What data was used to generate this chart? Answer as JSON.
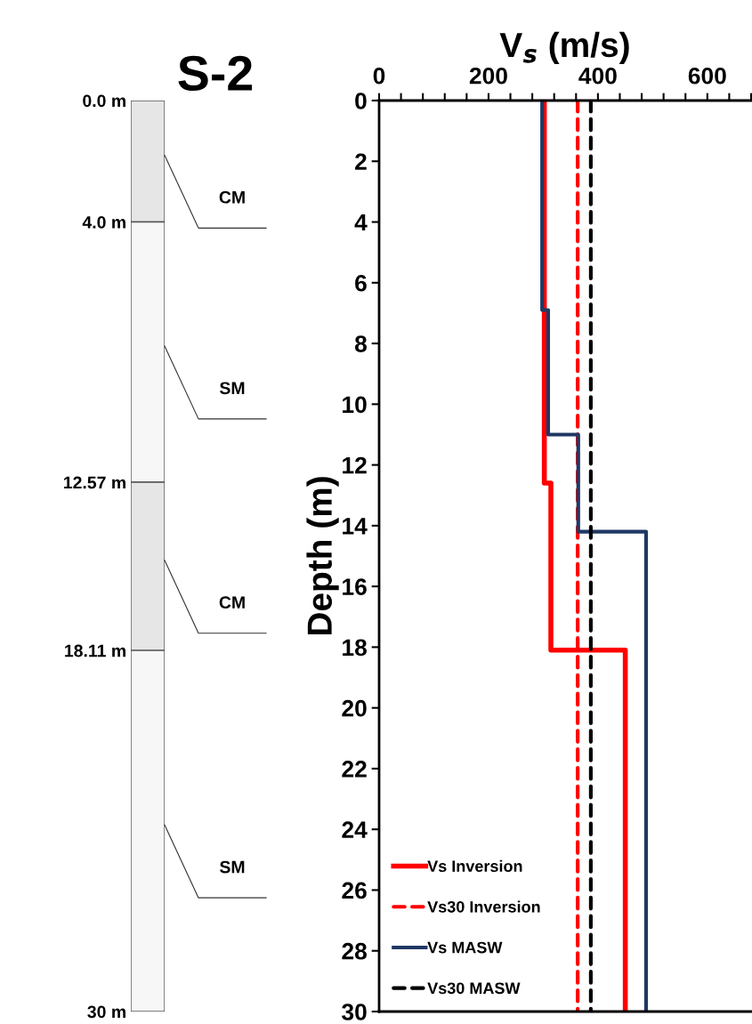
{
  "chart_data": [
    {
      "type": "bar",
      "title": "S-2",
      "stacked": true,
      "categories": [
        null
      ],
      "ylim": [
        30,
        0
      ],
      "yticks": [
        {
          "value": 0,
          "label": "0.0 m"
        },
        {
          "value": 4,
          "label": "4.0 m"
        },
        {
          "value": 12.57,
          "label": "12.57 m"
        },
        {
          "value": 18.11,
          "label": "18.11 m"
        },
        {
          "value": 30,
          "label": "30 m"
        }
      ],
      "tick_labels": "y",
      "series": [
        {
          "name": "CM",
          "color": "#e6e6e6",
          "values": [
            4
          ]
        },
        {
          "name": "SM",
          "color": "#f7f7f7",
          "values": [
            8.57
          ]
        },
        {
          "name": "CM",
          "color": "#e6e6e6",
          "values": [
            5.54
          ]
        },
        {
          "name": "SM",
          "color": "#f7f7f7",
          "values": [
            11.89
          ]
        }
      ]
    },
    {
      "type": "line",
      "xlabel": "V$_{s}$ (m/s)",
      "ylabel": "Depth (m)",
      "xlim": [
        0,
        680
      ],
      "ylim": [
        30,
        0
      ],
      "xticks": [
        0,
        {
          "value": 40,
          "label": null
        },
        {
          "value": 80,
          "label": null
        },
        {
          "value": 120,
          "label": null
        },
        {
          "value": 160,
          "label": null
        },
        200,
        {
          "value": 240,
          "label": null
        },
        {
          "value": 280,
          "label": null
        },
        {
          "value": 320,
          "label": null
        },
        {
          "value": 360,
          "label": null
        },
        400,
        {
          "value": 440,
          "label": null
        },
        {
          "value": 480,
          "label": null
        },
        {
          "value": 520,
          "label": null
        },
        {
          "value": 560,
          "label": null
        },
        600,
        {
          "value": 640,
          "label": null
        },
        {
          "value": 680,
          "label": null
        }
      ],
      "yticks": [
        0,
        2,
        4,
        6,
        8,
        10,
        12,
        14,
        16,
        18,
        20,
        22,
        24,
        26,
        28,
        30
      ],
      "grid": false,
      "legend": "lower left",
      "series": [
        {
          "name": "Vs Inversion",
          "color": "#ff0000",
          "line_style": "solid",
          "x": [
            302,
            302,
            314,
            314,
            450,
            450
          ],
          "values": [
            0,
            12.6,
            12.6,
            18.1,
            18.1,
            30
          ]
        },
        {
          "name": "Vs30 Inversion",
          "color": "#ff0000",
          "line_style": "dashed",
          "x": [
            363,
            363
          ],
          "values": [
            0,
            30
          ]
        },
        {
          "name": "Vs MASW",
          "color": "#1f3864",
          "line_style": "solid",
          "x": [
            298,
            298,
            309,
            309,
            364,
            364,
            488,
            488
          ],
          "values": [
            0,
            6.9,
            6.9,
            11.0,
            11.0,
            14.2,
            14.2,
            30
          ]
        },
        {
          "name": "Vs30 MASW",
          "color": "#000000",
          "line_style": "dashed",
          "x": [
            387,
            387
          ],
          "values": [
            0,
            30
          ]
        }
      ]
    }
  ]
}
